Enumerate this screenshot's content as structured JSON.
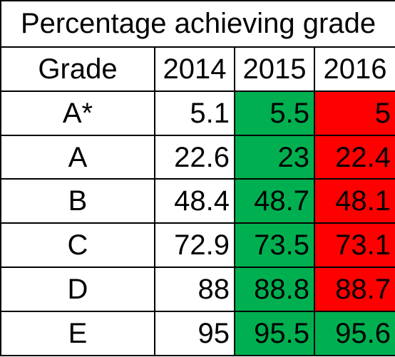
{
  "title": "Percentage achieving grade",
  "headers": [
    "Grade",
    "2014",
    "2015",
    "2016"
  ],
  "colors": {
    "increase": "#00b050",
    "decrease": "#ff0000",
    "plain": "#ffffff"
  },
  "rows": [
    {
      "grade": "A*",
      "y2014": "5.1",
      "y2015": "5.5",
      "y2016": "5",
      "c2015": "increase",
      "c2016": "decrease"
    },
    {
      "grade": "A",
      "y2014": "22.6",
      "y2015": "23",
      "y2016": "22.4",
      "c2015": "increase",
      "c2016": "decrease"
    },
    {
      "grade": "B",
      "y2014": "48.4",
      "y2015": "48.7",
      "y2016": "48.1",
      "c2015": "increase",
      "c2016": "decrease"
    },
    {
      "grade": "C",
      "y2014": "72.9",
      "y2015": "73.5",
      "y2016": "73.1",
      "c2015": "increase",
      "c2016": "decrease"
    },
    {
      "grade": "D",
      "y2014": "88",
      "y2015": "88.8",
      "y2016": "88.7",
      "c2015": "increase",
      "c2016": "decrease"
    },
    {
      "grade": "E",
      "y2014": "95",
      "y2015": "95.5",
      "y2016": "95.6",
      "c2015": "increase",
      "c2016": "increase"
    }
  ]
}
